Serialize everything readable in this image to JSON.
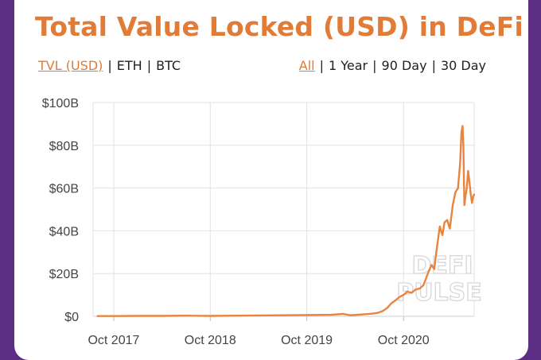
{
  "header": {
    "title": "Total Value Locked (USD) in DeFi",
    "metric_tabs": [
      {
        "label": "TVL (USD)",
        "active": true
      },
      {
        "label": "ETH",
        "active": false
      },
      {
        "label": "BTC",
        "active": false
      }
    ],
    "range_tabs": [
      {
        "label": "All",
        "active": true
      },
      {
        "label": "1 Year",
        "active": false
      },
      {
        "label": "90 Day",
        "active": false
      },
      {
        "label": "30 Day",
        "active": false
      }
    ],
    "separator": "|"
  },
  "watermark": [
    "DEFI",
    "PULSE"
  ],
  "colors": {
    "background": "#5b2d83",
    "accent": "#e07b38",
    "line": "#e8843f",
    "grid": "#e2e2e2"
  },
  "chart_data": {
    "type": "line",
    "title": "Total Value Locked (USD) in DeFi",
    "xlabel": "",
    "ylabel": "",
    "ylim": [
      0,
      100
    ],
    "y_unit": "billion USD",
    "xlim": [
      "2017-07-15",
      "2021-06-25"
    ],
    "y_ticks": [
      {
        "value": 0,
        "label": "$0"
      },
      {
        "value": 20,
        "label": "$20B"
      },
      {
        "value": 40,
        "label": "$40B"
      },
      {
        "value": 60,
        "label": "$60B"
      },
      {
        "value": 80,
        "label": "$80B"
      },
      {
        "value": 100,
        "label": "$100B"
      }
    ],
    "x_ticks": [
      {
        "date": "2017-10-01",
        "label": "Oct 2017"
      },
      {
        "date": "2018-10-01",
        "label": "Oct 2018"
      },
      {
        "date": "2019-10-01",
        "label": "Oct 2019"
      },
      {
        "date": "2020-10-01",
        "label": "Oct 2020"
      }
    ],
    "grid": true,
    "series": [
      {
        "x": [
          "2017-08-01",
          "2017-10-01",
          "2018-01-01",
          "2018-04-01",
          "2018-07-01",
          "2018-10-01",
          "2019-01-01",
          "2019-04-01",
          "2019-07-01",
          "2019-10-01",
          "2020-01-01",
          "2020-02-15",
          "2020-03-15",
          "2020-05-01",
          "2020-06-01",
          "2020-06-25",
          "2020-07-15",
          "2020-08-01",
          "2020-08-15",
          "2020-09-01",
          "2020-09-15",
          "2020-10-01",
          "2020-10-15",
          "2020-11-01",
          "2020-11-15",
          "2020-12-01",
          "2020-12-15",
          "2021-01-01",
          "2021-01-15",
          "2021-01-25",
          "2021-02-05",
          "2021-02-15",
          "2021-02-25",
          "2021-03-05",
          "2021-03-15",
          "2021-03-25",
          "2021-04-05",
          "2021-04-15",
          "2021-04-25",
          "2021-05-03",
          "2021-05-08",
          "2021-05-12",
          "2021-05-15",
          "2021-05-19",
          "2021-05-23",
          "2021-05-28",
          "2021-06-02",
          "2021-06-07",
          "2021-06-12",
          "2021-06-17",
          "2021-06-21",
          "2021-06-25"
        ],
        "values": [
          0.1,
          0.1,
          0.2,
          0.2,
          0.3,
          0.2,
          0.3,
          0.4,
          0.5,
          0.6,
          0.7,
          1.1,
          0.5,
          0.9,
          1.2,
          1.6,
          2.5,
          4.0,
          6.0,
          7.5,
          9.0,
          10.0,
          11.5,
          11.0,
          12.5,
          13.0,
          14.5,
          20.0,
          24.0,
          22.0,
          33.0,
          42.0,
          38.0,
          44.0,
          45.0,
          41.0,
          52.0,
          58.0,
          60.0,
          72.0,
          86.0,
          89.0,
          80.0,
          52.0,
          56.0,
          60.0,
          68.0,
          63.0,
          57.0,
          53.0,
          56.0,
          57.0
        ]
      }
    ]
  }
}
